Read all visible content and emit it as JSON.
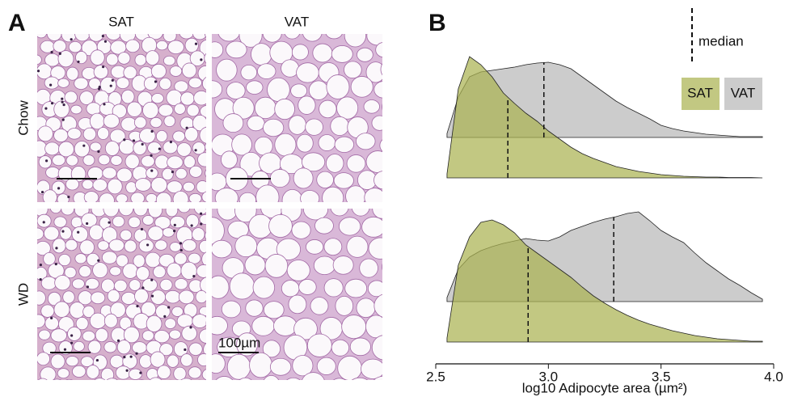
{
  "panel_a": {
    "label": "A",
    "columns": [
      "SAT",
      "VAT"
    ],
    "rows": [
      "Chow",
      "WD"
    ],
    "scale_bar": "100µm"
  },
  "chart_data": {
    "type": "ridgeline",
    "label": "B",
    "x_label": "log10 Adipocyte area (µm²)",
    "xlim": [
      2.5,
      4.0
    ],
    "xticks": [
      2.5,
      {
        "value": 3,
        "label": "3.0"
      },
      3.5,
      {
        "value": 4,
        "label": "4.0"
      }
    ],
    "median_label": "median",
    "series": [
      {
        "name": "SAT",
        "color": "#aab352"
      },
      {
        "name": "VAT",
        "color": "#cccccc"
      }
    ],
    "x": [
      2.55,
      2.6,
      2.65,
      2.7,
      2.75,
      2.8,
      2.85,
      2.9,
      2.95,
      3.0,
      3.05,
      3.1,
      3.15,
      3.2,
      3.25,
      3.3,
      3.35,
      3.4,
      3.45,
      3.5,
      3.55,
      3.6,
      3.65,
      3.7,
      3.75,
      3.8,
      3.85,
      3.9,
      3.95
    ],
    "groups": [
      {
        "densities": [
          [
            0.1,
            2.2,
            3.0,
            2.8,
            2.5,
            2.1,
            1.84,
            1.6,
            1.4,
            1.16,
            0.96,
            0.76,
            0.6,
            0.48,
            0.38,
            0.28,
            0.22,
            0.16,
            0.12,
            0.08,
            0.06,
            0.04,
            0.03,
            0.02,
            0.02,
            0.01,
            0.01,
            0.01,
            0
          ],
          [
            0.1,
            1.0,
            1.5,
            1.62,
            1.66,
            1.7,
            1.74,
            1.8,
            1.84,
            1.86,
            1.8,
            1.7,
            1.5,
            1.3,
            1.1,
            0.9,
            0.74,
            0.6,
            0.46,
            0.3,
            0.22,
            0.16,
            0.12,
            0.08,
            0.06,
            0.04,
            0.02,
            0.02,
            0.02
          ]
        ],
        "medians": [
          2.82,
          2.98
        ]
      },
      {
        "densities": [
          [
            0.1,
            1.9,
            2.6,
            2.96,
            3.02,
            2.9,
            2.7,
            2.4,
            2.2,
            2.0,
            1.8,
            1.6,
            1.36,
            1.14,
            0.96,
            0.8,
            0.66,
            0.54,
            0.44,
            0.36,
            0.28,
            0.22,
            0.16,
            0.12,
            0.08,
            0.06,
            0.04,
            0.02,
            0.02
          ],
          [
            0.1,
            0.8,
            1.1,
            1.26,
            1.36,
            1.44,
            1.5,
            1.56,
            1.52,
            1.5,
            1.6,
            1.76,
            1.86,
            1.96,
            2.04,
            2.1,
            2.18,
            2.22,
            2.0,
            1.76,
            1.6,
            1.46,
            1.2,
            0.96,
            0.76,
            0.56,
            0.4,
            0.22,
            0.06
          ]
        ],
        "medians": [
          2.91,
          3.29
        ]
      }
    ]
  }
}
